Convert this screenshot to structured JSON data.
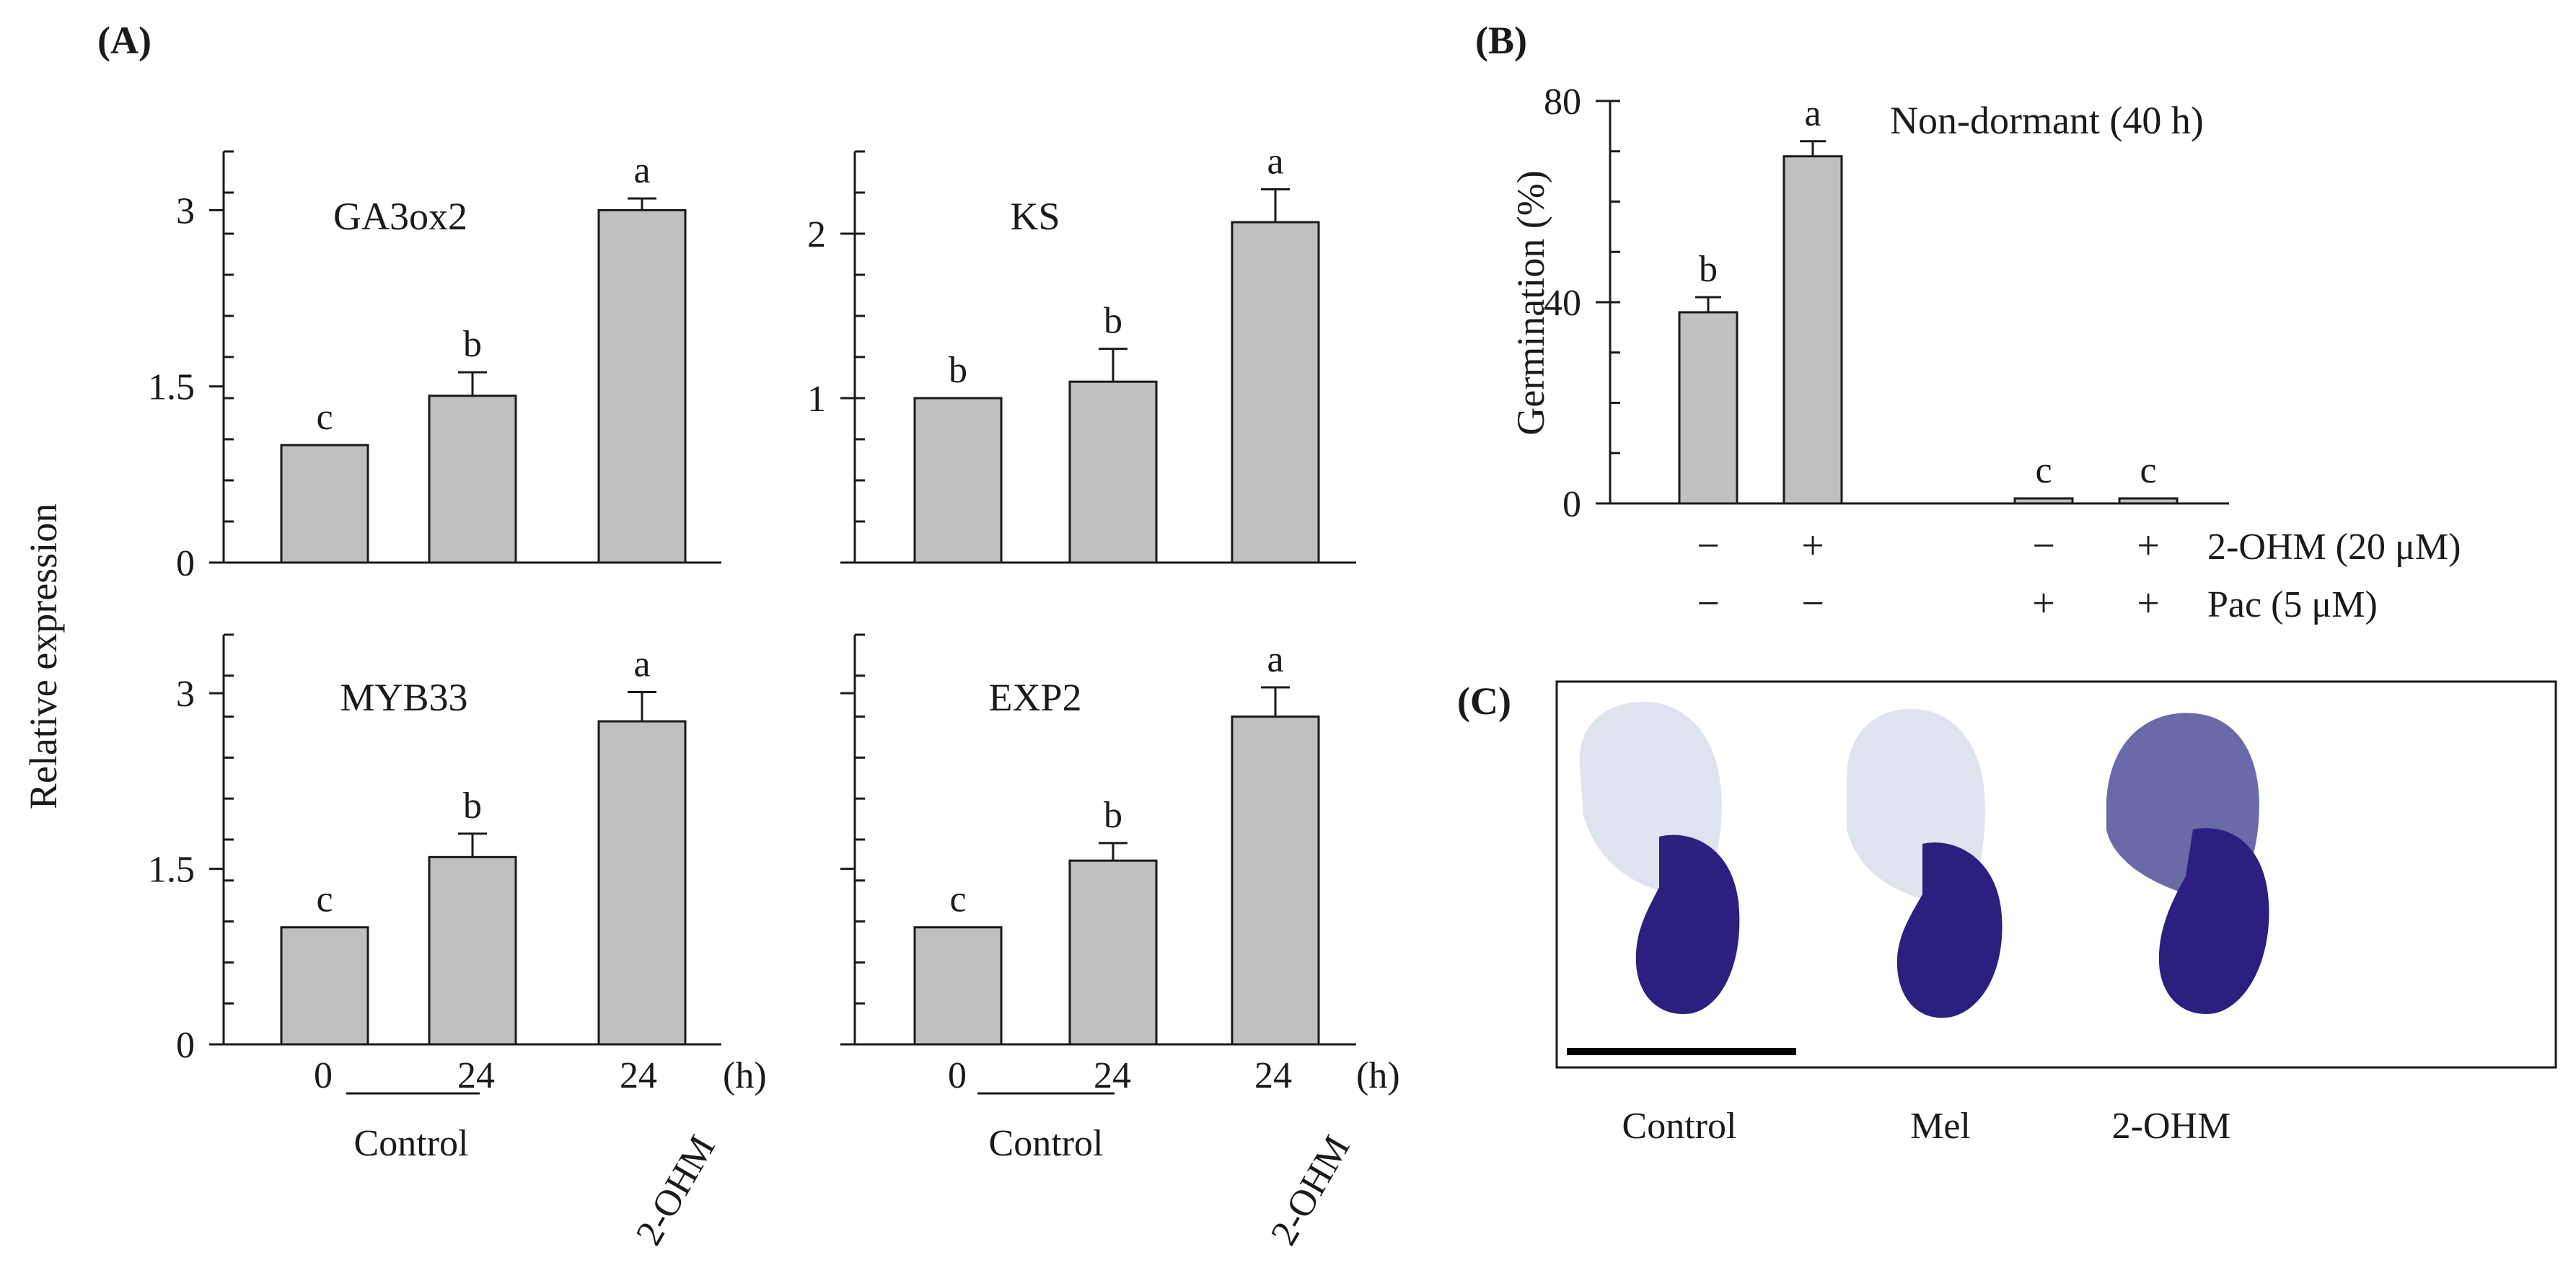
{
  "panel_labels": {
    "a": "(A)",
    "b": "(B)",
    "c": "(C)"
  },
  "bar_color": "#c0c0c0",
  "ink_color": "#1a1a1a",
  "panel_a": {
    "ylabel": "Relative expression",
    "hours_unit": "(h)",
    "x_ticks": [
      "0",
      "24",
      "24"
    ],
    "group_control": "Control",
    "group_treatment": "2-OHM"
  },
  "panel_c": {
    "stain_color": "#2b1f80",
    "tissue_color": "#dfe3ee",
    "captions": [
      "Control",
      "Mel",
      "2-OHM"
    ]
  },
  "chart_data": [
    {
      "type": "bar",
      "title": "GA3ox2",
      "categories": [
        "0",
        "24",
        "24"
      ],
      "groups": [
        "Control",
        "Control",
        "2-OHM"
      ],
      "values": [
        1.0,
        1.42,
        3.0
      ],
      "errors": [
        0,
        0.2,
        0.1
      ],
      "letters": [
        "c",
        "b",
        "a"
      ],
      "ylim": [
        0,
        3.5
      ],
      "yticks": [
        0,
        1.5,
        3
      ],
      "ytick_labels": [
        "0",
        "1.5",
        "3"
      ],
      "ylabel": "Relative expression"
    },
    {
      "type": "bar",
      "title": "KS",
      "categories": [
        "0",
        "24",
        "24"
      ],
      "groups": [
        "Control",
        "Control",
        "2-OHM"
      ],
      "values": [
        1.0,
        1.1,
        2.07
      ],
      "errors": [
        0,
        0.2,
        0.2
      ],
      "letters": [
        "b",
        "b",
        "a"
      ],
      "ylim": [
        0,
        2.5
      ],
      "yticks": [
        0,
        1,
        2
      ],
      "ytick_labels": [
        "",
        "1",
        "2"
      ],
      "ylabel": "Relative expression"
    },
    {
      "type": "bar",
      "title": "MYB33",
      "categories": [
        "0",
        "24",
        "24"
      ],
      "groups": [
        "Control",
        "Control",
        "2-OHM"
      ],
      "values": [
        1.0,
        1.6,
        2.76
      ],
      "errors": [
        0,
        0.2,
        0.25
      ],
      "letters": [
        "c",
        "b",
        "a"
      ],
      "ylim": [
        0,
        3.5
      ],
      "yticks": [
        0,
        1.5,
        3
      ],
      "ytick_labels": [
        "0",
        "1.5",
        "3"
      ],
      "ylabel": "Relative expression"
    },
    {
      "type": "bar",
      "title": "EXP2",
      "categories": [
        "0",
        "24",
        "24"
      ],
      "groups": [
        "Control",
        "Control",
        "2-OHM"
      ],
      "values": [
        1.0,
        1.57,
        2.8
      ],
      "errors": [
        0,
        0.15,
        0.25
      ],
      "letters": [
        "c",
        "b",
        "a"
      ],
      "ylim": [
        0,
        3.5
      ],
      "yticks": [
        0,
        1.5,
        3
      ],
      "ytick_labels": [
        "",
        "",
        ""
      ],
      "ylabel": "Relative expression"
    },
    {
      "type": "bar",
      "title": "Non-dormant (40 h)",
      "ylabel": "Germination (%)",
      "ylim": [
        0,
        80
      ],
      "yticks": [
        0,
        40,
        80
      ],
      "ytick_labels": [
        "0",
        "40",
        "80"
      ],
      "values": [
        38,
        69,
        1,
        1
      ],
      "errors": [
        3,
        3,
        0,
        0
      ],
      "letters": [
        "b",
        "a",
        "c",
        "c"
      ],
      "factors": [
        {
          "label": "2-OHM (20 μM)",
          "levels": [
            "−",
            "+",
            "−",
            "+"
          ]
        },
        {
          "label": "Pac (5 μM)",
          "levels": [
            "−",
            "−",
            "+",
            "+"
          ]
        }
      ]
    }
  ]
}
